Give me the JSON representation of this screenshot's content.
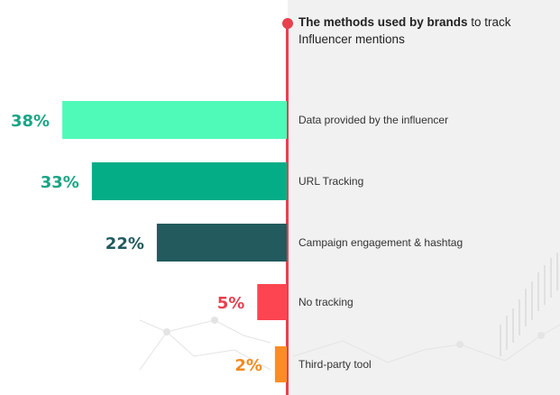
{
  "title": {
    "bold": "The methods used by brands",
    "rest": " to track Influencer mentions"
  },
  "chart_data": {
    "type": "bar",
    "orientation": "horizontal",
    "title": "The methods used by brands to track Influencer mentions",
    "categories": [
      "Data provided by the influencer",
      "URL Tracking",
      "Campaign engagement & hashtag",
      "No tracking",
      "Third-party tool"
    ],
    "values": [
      38,
      33,
      22,
      5,
      2
    ],
    "value_labels": [
      "38%",
      "33%",
      "22%",
      "5%",
      "2%"
    ],
    "colors": [
      "#4ffab8",
      "#05ad87",
      "#225a5e",
      "#fd4451",
      "#fb8c26"
    ],
    "label_colors": [
      "#1aa585",
      "#1aa585",
      "#225a5e",
      "#e8404e",
      "#f08a1f"
    ],
    "xlim": [
      0,
      40
    ],
    "grid": false,
    "legend": "none"
  }
}
